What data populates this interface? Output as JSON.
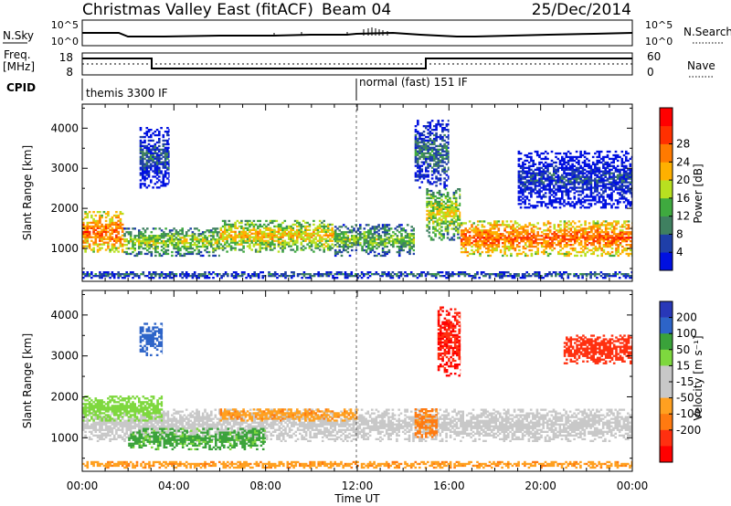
{
  "header": {
    "radar_title": "Christmas Valley East (fitACF)",
    "beam": "Beam 04",
    "date": "25/Dec/2014"
  },
  "status_panels": {
    "nsky_label": "N.Sky",
    "nsearch_label": "N.Search",
    "noise_ticks": [
      "10^5",
      "10^0"
    ],
    "freq_label_line1": "Freq.",
    "freq_label_line2": "[MHz]",
    "freq_ticks": [
      "18",
      "8"
    ],
    "nave_label": "Nave",
    "nave_ticks": [
      "60",
      "0"
    ],
    "cpid_label": "CPID",
    "cpid_segments": [
      {
        "name": "themis 3300 IF",
        "start_hour": 0,
        "end_hour": 12
      },
      {
        "name": "normal (fast) 151 IF",
        "start_hour": 12,
        "end_hour": 24
      }
    ]
  },
  "colors": {
    "power_scale": [
      "#0010e0",
      "#1f3fa8",
      "#3f8060",
      "#3faa3f",
      "#b8e020",
      "#ffb000",
      "#ff7a00",
      "#ff3000",
      "#ff0000"
    ],
    "velocity_scale": [
      "#2838b8",
      "#2d64c8",
      "#3aa23a",
      "#7ed83e",
      "#c8c8c8",
      "#c8c8c8",
      "#ffa020",
      "#ff7a10",
      "#ff3010",
      "#ff0000"
    ],
    "ground_scatter": "#c8c8c8"
  },
  "chart_data": [
    {
      "type": "heatmap",
      "panel": "power",
      "ylabel": "Slant Range [km]",
      "xlabel": "Time UT",
      "xlim_hours": [
        0,
        24
      ],
      "x_ticks": [
        "00:00",
        "04:00",
        "08:00",
        "12:00",
        "16:00",
        "20:00",
        "00:00"
      ],
      "ylim": [
        180,
        4600
      ],
      "y_ticks": [
        1000,
        2000,
        3000,
        4000
      ],
      "colorbar_label": "Power [dB]",
      "colorbar_ticks": [
        4,
        8,
        12,
        16,
        20,
        24,
        28
      ],
      "colorbar_range": [
        0,
        32
      ],
      "features": [
        {
          "t": [
            0.0,
            1.8
          ],
          "range": [
            900,
            1900
          ],
          "value": 28
        },
        {
          "t": [
            1.8,
            6.0
          ],
          "range": [
            800,
            1500
          ],
          "value": 18
        },
        {
          "t": [
            6.0,
            11.0
          ],
          "range": [
            900,
            1700
          ],
          "value": 22
        },
        {
          "t": [
            11.0,
            14.5
          ],
          "range": [
            800,
            1600
          ],
          "value": 16
        },
        {
          "t": [
            15.0,
            16.5
          ],
          "range": [
            1200,
            2500
          ],
          "value": 20
        },
        {
          "t": [
            16.5,
            24.0
          ],
          "range": [
            800,
            1700
          ],
          "value": 28
        },
        {
          "t": [
            0.0,
            24.0
          ],
          "range": [
            250,
            400
          ],
          "value": 10
        },
        {
          "t": [
            2.5,
            3.8
          ],
          "range": [
            2500,
            4000
          ],
          "value": 8
        },
        {
          "t": [
            14.5,
            16.0
          ],
          "range": [
            2500,
            4200
          ],
          "value": 10
        },
        {
          "t": [
            19.0,
            24.0
          ],
          "range": [
            2000,
            3400
          ],
          "value": 6
        }
      ]
    },
    {
      "type": "heatmap",
      "panel": "velocity",
      "ylabel": "Slant Range [km]",
      "xlabel": "Time UT",
      "xlim_hours": [
        0,
        24
      ],
      "x_ticks": [
        "00:00",
        "04:00",
        "08:00",
        "12:00",
        "16:00",
        "20:00",
        "00:00"
      ],
      "ylim": [
        180,
        4600
      ],
      "y_ticks": [
        1000,
        2000,
        3000,
        4000
      ],
      "colorbar_label": "Velocity [m s⁻¹]",
      "colorbar_ticks": [
        "200",
        "100",
        "50",
        "15",
        "-15",
        "-50",
        "-100",
        "-200"
      ],
      "features": [
        {
          "t": [
            0.0,
            24.0
          ],
          "range": [
            900,
            1700
          ],
          "value": "ground scatter"
        },
        {
          "t": [
            0.0,
            3.5
          ],
          "range": [
            1400,
            2000
          ],
          "value": 30
        },
        {
          "t": [
            2.0,
            8.0
          ],
          "range": [
            700,
            1200
          ],
          "value": 60
        },
        {
          "t": [
            6.0,
            12.0
          ],
          "range": [
            1400,
            1700
          ],
          "value": -40
        },
        {
          "t": [
            14.5,
            15.5
          ],
          "range": [
            1000,
            1700
          ],
          "value": -60
        },
        {
          "t": [
            15.5,
            16.5
          ],
          "range": [
            2500,
            4200
          ],
          "value": -200
        },
        {
          "t": [
            0.0,
            24.0
          ],
          "range": [
            250,
            400
          ],
          "value": -40
        },
        {
          "t": [
            2.5,
            3.5
          ],
          "range": [
            3000,
            3800
          ],
          "value": 150
        },
        {
          "t": [
            21.0,
            24.0
          ],
          "range": [
            2800,
            3500
          ],
          "value": -150
        }
      ]
    }
  ]
}
